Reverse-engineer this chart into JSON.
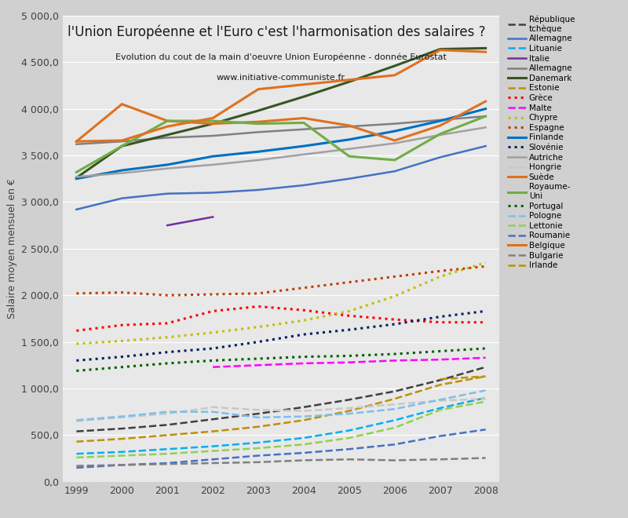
{
  "title": "l'Union Européenne et l'Euro c'est l'harmonisation des salaires ?",
  "subtitle1": "Evolution du cout de la main d'oeuvre Union Européenne - donnée Eurostat",
  "subtitle2": "www.initiative-communiste.fr",
  "ylabel": "Salaire moyen mensuel en €",
  "years": [
    1999,
    2000,
    2001,
    2002,
    2003,
    2004,
    2005,
    2006,
    2007,
    2008
  ],
  "bg_outer": "#d0d0d0",
  "bg_inner": "#e8e8e8",
  "series": [
    {
      "name": "République\ntchèque",
      "color": "#404040",
      "linestyle": "--",
      "linewidth": 1.8,
      "markersize": 0,
      "data": [
        540,
        570,
        610,
        670,
        730,
        800,
        880,
        970,
        1090,
        1230
      ]
    },
    {
      "name": "Allemagne",
      "color": "#4472c4",
      "linestyle": "-",
      "linewidth": 1.8,
      "markersize": 0,
      "data": [
        2920,
        3040,
        3090,
        3100,
        3130,
        3180,
        3250,
        3330,
        3480,
        3600
      ]
    },
    {
      "name": "Lituanie",
      "color": "#00b0f0",
      "linestyle": "--",
      "linewidth": 1.8,
      "markersize": 0,
      "data": [
        300,
        320,
        350,
        380,
        420,
        470,
        550,
        660,
        790,
        900
      ]
    },
    {
      "name": "Italie",
      "color": "#7030a0",
      "linestyle": "-",
      "linewidth": 1.8,
      "markersize": 0,
      "data": [
        null,
        null,
        2750,
        2840,
        null,
        null,
        null,
        null,
        null,
        null
      ]
    },
    {
      "name": "Allemagne",
      "color": "#808080",
      "linestyle": "-",
      "linewidth": 1.8,
      "markersize": 0,
      "data": [
        3620,
        3650,
        3690,
        3710,
        3750,
        3780,
        3810,
        3840,
        3880,
        3920
      ]
    },
    {
      "name": "Danemark",
      "color": "#375623",
      "linestyle": "-",
      "linewidth": 2.2,
      "markersize": 0,
      "data": [
        3260,
        3600,
        3720,
        3840,
        3980,
        4130,
        4290,
        4460,
        4640,
        4650
      ]
    },
    {
      "name": "Estonie",
      "color": "#bf9000",
      "linestyle": "--",
      "linewidth": 1.8,
      "markersize": 0,
      "data": [
        430,
        460,
        500,
        540,
        590,
        660,
        760,
        890,
        1040,
        1130
      ]
    },
    {
      "name": "Grèce",
      "color": "#ff0000",
      "linestyle": ":",
      "linewidth": 2.2,
      "markersize": 0,
      "data": [
        1620,
        1680,
        1700,
        1830,
        1880,
        1840,
        1780,
        1740,
        1710,
        1710
      ]
    },
    {
      "name": "Malte",
      "color": "#ff00ff",
      "linestyle": "--",
      "linewidth": 1.8,
      "markersize": 0,
      "data": [
        null,
        null,
        null,
        1230,
        1250,
        1270,
        1280,
        1300,
        1310,
        1330
      ]
    },
    {
      "name": "Chypre",
      "color": "#c0c000",
      "linestyle": ":",
      "linewidth": 2.2,
      "markersize": 0,
      "data": [
        1480,
        1510,
        1550,
        1600,
        1660,
        1730,
        1830,
        1990,
        2200,
        2350
      ]
    },
    {
      "name": "Espagne",
      "color": "#c04000",
      "linestyle": ":",
      "linewidth": 2.2,
      "markersize": 0,
      "data": [
        2020,
        2030,
        2000,
        2010,
        2020,
        2080,
        2140,
        2200,
        2260,
        2310
      ]
    },
    {
      "name": "Finlande",
      "color": "#0070c0",
      "linestyle": "-",
      "linewidth": 2.2,
      "markersize": 0,
      "data": [
        3250,
        3340,
        3400,
        3490,
        3540,
        3600,
        3670,
        3760,
        3870,
        4000
      ]
    },
    {
      "name": "Slovénie",
      "color": "#002060",
      "linestyle": ":",
      "linewidth": 2.2,
      "markersize": 0,
      "data": [
        1300,
        1340,
        1390,
        1430,
        1500,
        1580,
        1630,
        1690,
        1770,
        1830
      ]
    },
    {
      "name": "Autriche",
      "color": "#a0a0a0",
      "linestyle": "-",
      "linewidth": 1.8,
      "markersize": 0,
      "data": [
        3270,
        3310,
        3360,
        3400,
        3450,
        3510,
        3570,
        3630,
        3720,
        3800
      ]
    },
    {
      "name": "Hongrie",
      "color": "#c8c8c8",
      "linestyle": "--",
      "linewidth": 1.8,
      "markersize": 0,
      "data": [
        650,
        690,
        730,
        800,
        770,
        760,
        790,
        830,
        870,
        890
      ]
    },
    {
      "name": "Suède",
      "color": "#e07020",
      "linestyle": "-",
      "linewidth": 2.2,
      "markersize": 0,
      "data": [
        3650,
        4050,
        3870,
        3840,
        3860,
        3900,
        3820,
        3660,
        3820,
        4080
      ]
    },
    {
      "name": "Royaume-\nUni",
      "color": "#70ad47",
      "linestyle": "-",
      "linewidth": 2.2,
      "markersize": 0,
      "data": [
        3320,
        3600,
        3870,
        3870,
        3840,
        3850,
        3490,
        3450,
        3730,
        3920
      ]
    },
    {
      "name": "Portugal",
      "color": "#006000",
      "linestyle": ":",
      "linewidth": 2.2,
      "markersize": 0,
      "data": [
        1190,
        1230,
        1270,
        1300,
        1320,
        1340,
        1350,
        1370,
        1400,
        1430
      ]
    },
    {
      "name": "Pologne",
      "color": "#7bbfea",
      "linestyle": "--",
      "linewidth": 1.8,
      "markersize": 0,
      "data": [
        660,
        700,
        750,
        750,
        690,
        700,
        730,
        780,
        880,
        980
      ]
    },
    {
      "name": "Lettonie",
      "color": "#92d050",
      "linestyle": "--",
      "linewidth": 1.8,
      "markersize": 0,
      "data": [
        260,
        280,
        300,
        330,
        360,
        400,
        470,
        580,
        770,
        860
      ]
    },
    {
      "name": "Roumanie",
      "color": "#4472c4",
      "linestyle": "--",
      "linewidth": 1.8,
      "markersize": 0,
      "data": [
        150,
        180,
        200,
        240,
        280,
        310,
        350,
        400,
        490,
        560
      ]
    },
    {
      "name": "Belgique",
      "color": "#e07020",
      "linestyle": "-",
      "linewidth": 2.2,
      "markersize": 0,
      "data": [
        3650,
        3660,
        3810,
        3900,
        4210,
        4260,
        4310,
        4360,
        4630,
        4610
      ]
    },
    {
      "name": "Bulgarie",
      "color": "#808080",
      "linestyle": "--",
      "linewidth": 1.8,
      "markersize": 0,
      "data": [
        170,
        180,
        190,
        200,
        210,
        230,
        240,
        230,
        240,
        255
      ]
    },
    {
      "name": "Irlande",
      "color": "#bf9000",
      "linestyle": "--",
      "linewidth": 1.8,
      "markersize": 0,
      "data": [
        null,
        null,
        null,
        null,
        null,
        null,
        null,
        null,
        1100,
        1130
      ]
    }
  ]
}
